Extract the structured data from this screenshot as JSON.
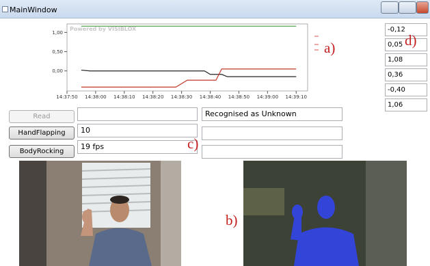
{
  "window": {
    "title": "MainWindow"
  },
  "chart_data": {
    "type": "line",
    "watermark": "Powered by VISIBLOX",
    "xlim": [
      "14:37:50",
      "14:39:14"
    ],
    "xticks": [
      "14:37:50",
      "14:38:00",
      "14:38:10",
      "14:38:20",
      "14:38:30",
      "14:38:40",
      "14:38:50",
      "14:39:00",
      "14:39:10"
    ],
    "ylim": [
      -0.52,
      1.22
    ],
    "yticks": [
      {
        "value": 1,
        "label": "1,00"
      },
      {
        "value": 0.5,
        "label": "0,50"
      },
      {
        "value": 0,
        "label": "0,00"
      }
    ],
    "grid": false,
    "series": [
      {
        "color": "#5fa35f",
        "x": [
          "14:37:55",
          "14:39:10"
        ],
        "values": [
          1.16,
          1.16
        ]
      },
      {
        "color": "#222222",
        "x": [
          "14:37:55",
          "14:37:58",
          "14:38:38",
          "14:38:40",
          "14:38:44",
          "14:38:46",
          "14:39:10"
        ],
        "values": [
          0.02,
          0.0,
          0.0,
          -0.09,
          -0.09,
          -0.15,
          -0.15
        ]
      },
      {
        "color": "#c0392b",
        "x": [
          "14:37:55",
          "14:38:28",
          "14:38:32",
          "14:38:42",
          "14:38:44",
          "14:39:10"
        ],
        "values": [
          -0.42,
          -0.42,
          -0.24,
          -0.24,
          0.05,
          0.05
        ]
      }
    ]
  },
  "controls": {
    "buttons": [
      "Read",
      "HandFlapping",
      "BodyRocking"
    ],
    "fields": [
      "10",
      "19 fps"
    ],
    "status": "Recognised as Unknown",
    "side_values": [
      "-0,12",
      "0,05",
      "1,08",
      "0,36",
      "-0,40",
      "1,06"
    ]
  },
  "annotations": [
    "a)",
    "b)",
    "c)",
    "d)"
  ]
}
